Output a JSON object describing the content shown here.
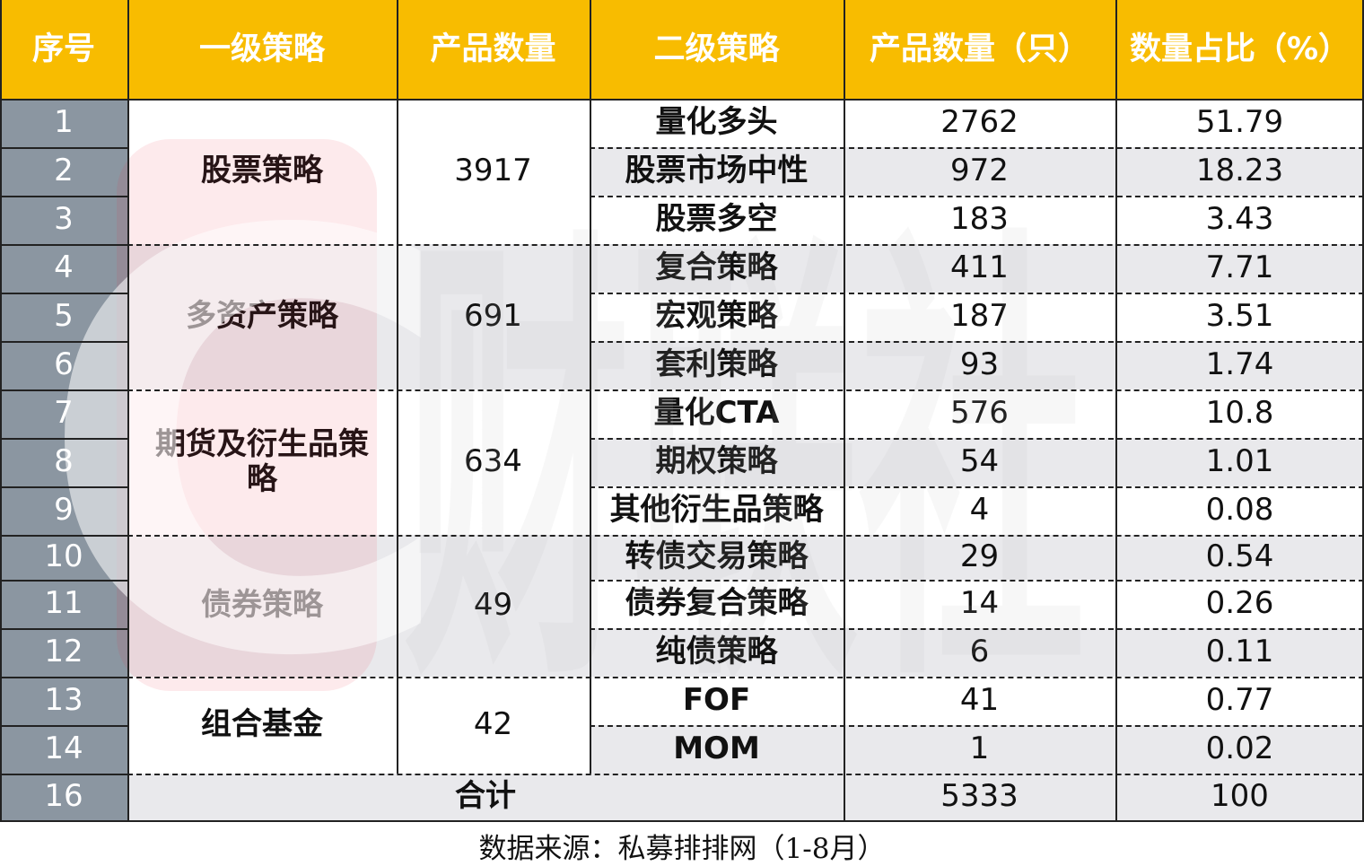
{
  "table": {
    "headers": [
      "序号",
      "一级策略",
      "产品数量",
      "二级策略",
      "产品数量（只）",
      "数量占比（%）"
    ],
    "rows": [
      {
        "idx": "1",
        "sub": "量化多头",
        "count": "2762",
        "pct": "51.79"
      },
      {
        "idx": "2",
        "sub": "股票市场中性",
        "count": "972",
        "pct": "18.23"
      },
      {
        "idx": "3",
        "sub": "股票多空",
        "count": "183",
        "pct": "3.43"
      },
      {
        "idx": "4",
        "sub": "复合策略",
        "count": "411",
        "pct": "7.71"
      },
      {
        "idx": "5",
        "sub": "宏观策略",
        "count": "187",
        "pct": "3.51"
      },
      {
        "idx": "6",
        "sub": "套利策略",
        "count": "93",
        "pct": "1.74"
      },
      {
        "idx": "7",
        "sub": "量化CTA",
        "count": "576",
        "pct": "10.8"
      },
      {
        "idx": "8",
        "sub": "期权策略",
        "count": "54",
        "pct": "1.01"
      },
      {
        "idx": "9",
        "sub": "其他衍生品策略",
        "count": "4",
        "pct": "0.08"
      },
      {
        "idx": "10",
        "sub": "转债交易策略",
        "count": "29",
        "pct": "0.54"
      },
      {
        "idx": "11",
        "sub": "债券复合策略",
        "count": "14",
        "pct": "0.26"
      },
      {
        "idx": "12",
        "sub": "纯债策略",
        "count": "6",
        "pct": "0.11"
      },
      {
        "idx": "13",
        "sub": "FOF",
        "count": "41",
        "pct": "0.77"
      },
      {
        "idx": "14",
        "sub": "MOM",
        "count": "1",
        "pct": "0.02"
      }
    ],
    "groups": [
      {
        "name": "股票策略",
        "total": "3917",
        "start": 0,
        "span": 3
      },
      {
        "name": "多资产策略",
        "total": "691",
        "start": 3,
        "span": 3
      },
      {
        "name": "期货及衍生品策略",
        "total": "634",
        "start": 6,
        "span": 3
      },
      {
        "name": "债券策略",
        "total": "49",
        "start": 9,
        "span": 3
      },
      {
        "name": "组合基金",
        "total": "42",
        "start": 12,
        "span": 2
      }
    ],
    "total_row": {
      "idx": "16",
      "label": "合计",
      "count": "5333",
      "pct": "100"
    }
  },
  "source": "数据来源：私募排排网（1-8月）",
  "watermark": {
    "text": "财联社",
    "letter": "C"
  },
  "colors": {
    "header_bg": "#f8bc00",
    "index_bg": "#8b96a1",
    "shade_bg": "#e9e9ec",
    "watermark_red": "#e83040"
  }
}
